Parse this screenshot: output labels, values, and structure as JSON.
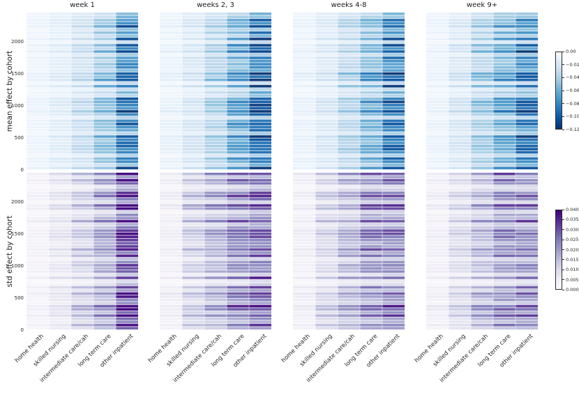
{
  "figure": {
    "background": "#ffffff"
  },
  "xlabels": [
    "home health",
    "skilled nursing",
    "intermediate care/cah",
    "long term care",
    "other inpatient"
  ],
  "panels": [
    {
      "title": "week 1"
    },
    {
      "title": "weeks 2, 3"
    },
    {
      "title": "weeks 4-8"
    },
    {
      "title": "week 9+"
    }
  ],
  "sections": [
    {
      "id": "mean",
      "ylabel": "mean effect by cohort",
      "colormap": "blues",
      "vmax": 0.12,
      "ytick_labels": [
        "0",
        "500",
        "1000",
        "1500",
        "2000"
      ],
      "colorbar_tick_labels": [
        "0.00",
        "−0.02",
        "−0.04",
        "−0.06",
        "−0.08",
        "−0.10",
        "−0.12"
      ]
    },
    {
      "id": "std",
      "ylabel": "std effect by cohort",
      "colormap": "purples",
      "vmax": 0.04,
      "ytick_labels": [
        "0",
        "500",
        "1000",
        "1500",
        "2000"
      ],
      "colorbar_tick_labels": [
        "0.040",
        "0.035",
        "0.030",
        "0.025",
        "0.020",
        "0.015",
        "0.010",
        "0.005",
        "0.000"
      ]
    }
  ],
  "colormaps": {
    "blues": [
      "#f7fbff",
      "#deebf7",
      "#c6dbef",
      "#9ecae1",
      "#6baed6",
      "#4292c6",
      "#2171b5",
      "#08519c",
      "#08306b"
    ],
    "purples": [
      "#fcfbfd",
      "#efedf5",
      "#dadaeb",
      "#bcbddc",
      "#9e9ac8",
      "#807dba",
      "#6a51a3",
      "#54278f",
      "#3f007d"
    ]
  },
  "chart_data": {
    "type": "heatmap",
    "layout": "2 stacked heatmap rows (mean effect, std effect) x 4 panels (time periods), shared categorical x-axis, cohort index on y-axis",
    "categories": [
      "home health",
      "skilled nursing",
      "intermediate care/cah",
      "long term care",
      "other inpatient"
    ],
    "panel_titles": [
      "week 1",
      "weeks 2, 3",
      "weeks 4-8",
      "week 9+"
    ],
    "y_axis": {
      "label_top": "mean effect by cohort",
      "label_bottom": "std effect by cohort",
      "range": [
        0,
        2455
      ],
      "ticks": [
        0,
        500,
        1000,
        1500,
        2000
      ],
      "rows_rendered": 50
    },
    "mean_effect": {
      "colorbar": {
        "colormap": "Blues",
        "range": [
          0,
          -0.12
        ],
        "ticks": [
          0.0,
          -0.02,
          -0.04,
          -0.06,
          -0.08,
          -0.1,
          -0.12
        ],
        "position": "right"
      },
      "column_means_by_panel": {
        "week 1": [
          -0.006,
          -0.012,
          -0.024,
          -0.041,
          -0.074
        ],
        "weeks 2, 3": [
          -0.008,
          -0.017,
          -0.034,
          -0.055,
          -0.084
        ],
        "weeks 4-8": [
          -0.008,
          -0.016,
          -0.032,
          -0.05,
          -0.079
        ],
        "week 9+": [
          -0.007,
          -0.018,
          -0.037,
          -0.053,
          -0.074
        ]
      }
    },
    "std_effect": {
      "colorbar": {
        "colormap": "Purples",
        "range": [
          0.04,
          0.0
        ],
        "ticks": [
          0.04,
          0.035,
          0.03,
          0.025,
          0.02,
          0.015,
          0.01,
          0.005,
          0.0
        ],
        "position": "right"
      },
      "column_means_by_panel": {
        "week 1": [
          0.003,
          0.006,
          0.01,
          0.015,
          0.027
        ],
        "weeks 2, 3": [
          0.004,
          0.01,
          0.014,
          0.019,
          0.022
        ],
        "weeks 4-8": [
          0.004,
          0.009,
          0.013,
          0.018,
          0.02
        ],
        "week 9+": [
          0.004,
          0.008,
          0.013,
          0.018,
          0.019
        ]
      }
    },
    "row_noise": {
      "seed": 77,
      "base_range": [
        0.35,
        1.65
      ],
      "cell_jitter": [
        0.82,
        1.18
      ]
    }
  }
}
